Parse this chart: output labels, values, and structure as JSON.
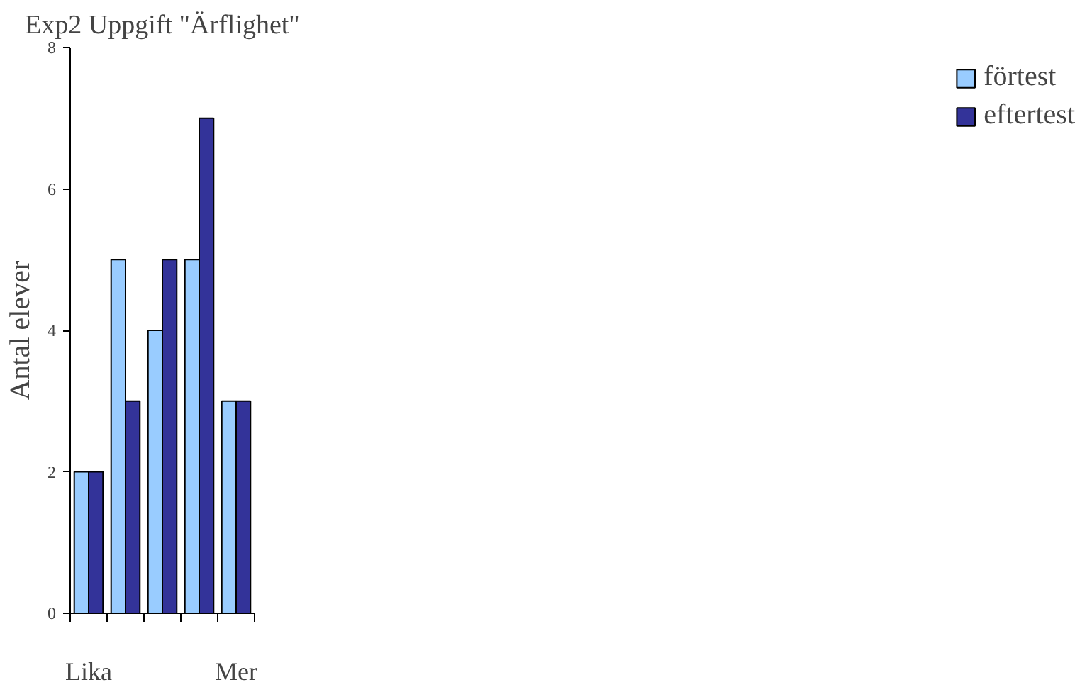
{
  "chart_data": {
    "type": "bar",
    "title": "Exp2 Uppgift \"Ärflighet\"",
    "ylabel": "Antal elever",
    "categories": [
      "Lika",
      null,
      null,
      null,
      "Mer"
    ],
    "series": [
      {
        "name": "förtest",
        "color": "#99ccff",
        "values": [
          2,
          5,
          4,
          5,
          3
        ]
      },
      {
        "name": "eftertest",
        "color": "#333399",
        "values": [
          2,
          3,
          5,
          7,
          3
        ]
      }
    ],
    "ylim": [
      0,
      8
    ],
    "yticks": [
      0,
      2,
      4,
      6,
      8
    ],
    "grid": false,
    "legend": "right"
  }
}
